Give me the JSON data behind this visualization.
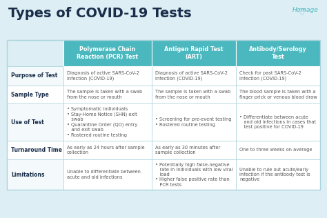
{
  "title": "Types of COVID-19 Tests",
  "bg_color": "#ddeef5",
  "header_bg": "#4ab8be",
  "header_text_color": "#ffffff",
  "row_label_color": "#1a2e4a",
  "cell_text_color": "#555555",
  "border_color": "#aad4dc",
  "row_label_bg": "#f5fafb",
  "col_headers": [
    "Polymerase Chain\nReaction (PCR) Test",
    "Antigen Rapid Test\n(ART)",
    "Antibody/Serology\nTest"
  ],
  "row_labels": [
    "Purpose of Test",
    "Sample Type",
    "Use of Test",
    "Turnaround Time",
    "Limitations"
  ],
  "cells": [
    [
      "Diagnosis of active SARS-CoV-2\ninfection (COVID-19)",
      "Diagnosis of active SARS-CoV-2\ninfection (COVID-19)",
      "Check for past SARS-CoV-2\ninfection (COVID-19)"
    ],
    [
      "The sample is taken with a swab\nfrom the nose or mouth",
      "The sample is taken with a swab\nfrom the nose or mouth",
      "The blood sample is taken with a\nfinger prick or venous blood draw"
    ],
    [
      "• Symptomatic individuals\n• Stay-Home Notice (SHN) exit\n   swab\n• Quarantine Order (QO) entry\n   and exit swab\n• Rostered routine testing",
      "• Screening for pre-event testing\n• Rostered routine testing",
      "• Differentiate between acute\n   and old infections in cases that\n   test positive for COVID-19"
    ],
    [
      "As early as 24 hours after sample\ncollection",
      "As early as 30 minutes after\nsample collection",
      "One to three weeks on average"
    ],
    [
      "Unable to differentiate between\nacute and old infections",
      "• Potentially high false-negative\n   rate in individuals with low viral\n   load\n• Higher false positive rate than\n   PCR tests",
      "Unable to rule out acute/early\ninfection if the antibody test is\nnegative"
    ]
  ],
  "logo_text": "Homage",
  "title_color": "#1a2e4a",
  "title_fontsize": 14,
  "header_fontsize": 5.8,
  "row_label_fontsize": 5.5,
  "cell_fontsize": 4.8
}
